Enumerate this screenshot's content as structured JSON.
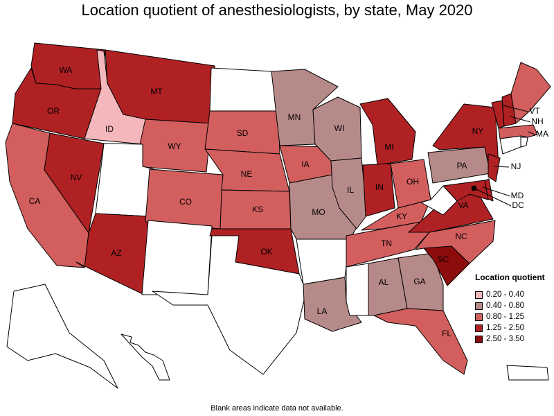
{
  "title": "Location quotient of anesthesiologists, by state, May 2020",
  "legend": {
    "title": "Location quotient",
    "items": [
      {
        "label": "0.20 - 0.40",
        "color": "#f4b8bc"
      },
      {
        "label": "0.40 - 0.80",
        "color": "#b78a8a"
      },
      {
        "label": "0.80 - 1.25",
        "color": "#d25e5e"
      },
      {
        "label": "1.25 - 2.50",
        "color": "#b02124"
      },
      {
        "label": "2.50 - 3.50",
        "color": "#8c0c0c"
      }
    ]
  },
  "na_color": "#ffffff",
  "note": "Blank areas indicate data not available.",
  "states": [
    {
      "abbr": "WA",
      "cls": 3
    },
    {
      "abbr": "OR",
      "cls": 3
    },
    {
      "abbr": "CA",
      "cls": 2
    },
    {
      "abbr": "ID",
      "cls": 0
    },
    {
      "abbr": "NV",
      "cls": 3
    },
    {
      "abbr": "MT",
      "cls": 3
    },
    {
      "abbr": "WY",
      "cls": 2
    },
    {
      "abbr": "UT",
      "cls": null
    },
    {
      "abbr": "AZ",
      "cls": 3
    },
    {
      "abbr": "CO",
      "cls": 2
    },
    {
      "abbr": "NM",
      "cls": null
    },
    {
      "abbr": "ND",
      "cls": null
    },
    {
      "abbr": "SD",
      "cls": 2
    },
    {
      "abbr": "NE",
      "cls": 2
    },
    {
      "abbr": "KS",
      "cls": 2
    },
    {
      "abbr": "OK",
      "cls": 3
    },
    {
      "abbr": "TX",
      "cls": null
    },
    {
      "abbr": "MN",
      "cls": 1
    },
    {
      "abbr": "IA",
      "cls": 2
    },
    {
      "abbr": "MO",
      "cls": 1
    },
    {
      "abbr": "AR",
      "cls": null
    },
    {
      "abbr": "LA",
      "cls": 1
    },
    {
      "abbr": "WI",
      "cls": 1
    },
    {
      "abbr": "IL",
      "cls": 1
    },
    {
      "abbr": "MI",
      "cls": 3
    },
    {
      "abbr": "IN",
      "cls": 3
    },
    {
      "abbr": "OH",
      "cls": 2
    },
    {
      "abbr": "KY",
      "cls": 2
    },
    {
      "abbr": "TN",
      "cls": 2
    },
    {
      "abbr": "MS",
      "cls": null
    },
    {
      "abbr": "AL",
      "cls": 1
    },
    {
      "abbr": "GA",
      "cls": 1
    },
    {
      "abbr": "FL",
      "cls": 2
    },
    {
      "abbr": "SC",
      "cls": 4
    },
    {
      "abbr": "NC",
      "cls": 2
    },
    {
      "abbr": "VA",
      "cls": 3
    },
    {
      "abbr": "WV",
      "cls": null
    },
    {
      "abbr": "PA",
      "cls": 1
    },
    {
      "abbr": "NY",
      "cls": 3
    },
    {
      "abbr": "NJ",
      "cls": 3
    },
    {
      "abbr": "DE",
      "cls": 3
    },
    {
      "abbr": "MD",
      "cls": 3
    },
    {
      "abbr": "DC",
      "cls": 4
    },
    {
      "abbr": "CT",
      "cls": null
    },
    {
      "abbr": "RI",
      "cls": null
    },
    {
      "abbr": "MA",
      "cls": 2
    },
    {
      "abbr": "VT",
      "cls": 3
    },
    {
      "abbr": "NH",
      "cls": 3
    },
    {
      "abbr": "ME",
      "cls": 2
    },
    {
      "abbr": "AK",
      "cls": null
    },
    {
      "abbr": "HI",
      "cls": null
    },
    {
      "abbr": "PR",
      "cls": null
    }
  ]
}
